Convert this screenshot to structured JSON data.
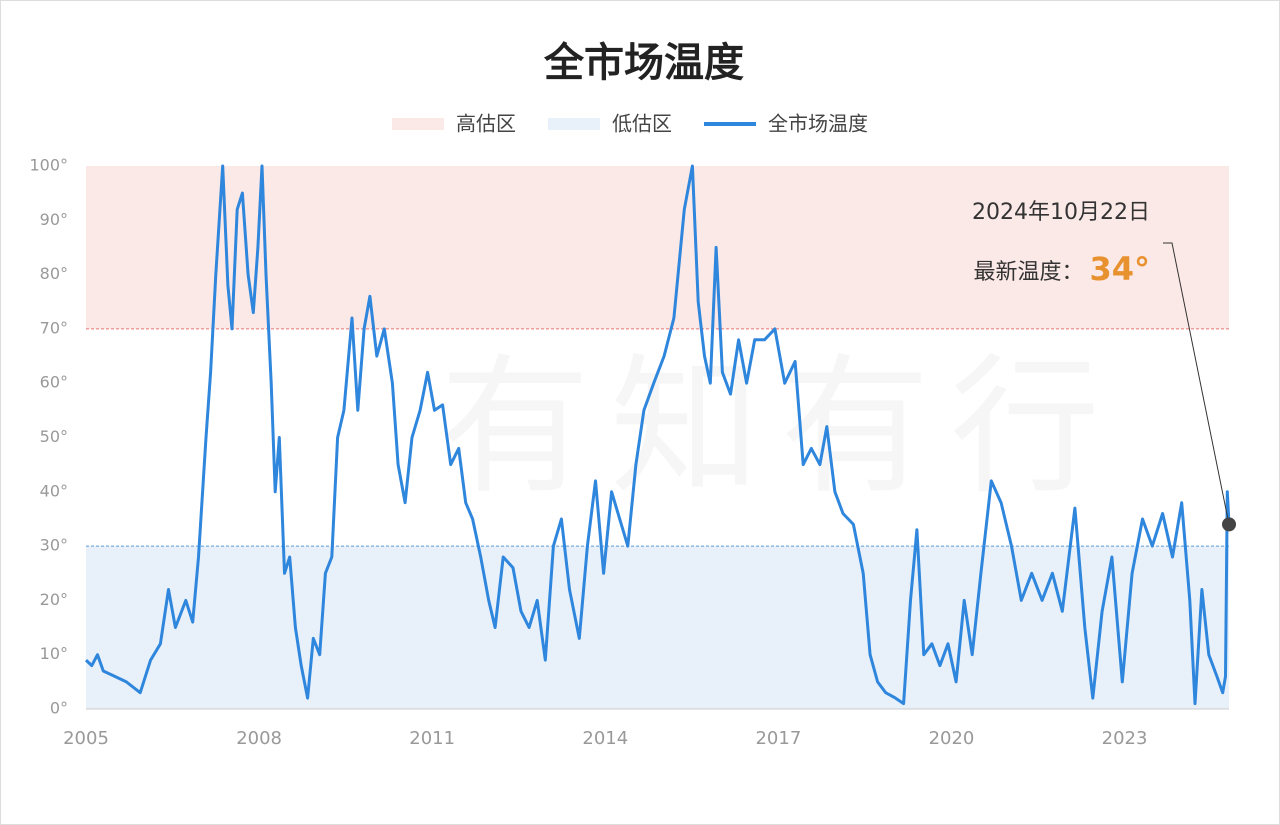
{
  "chart_data": {
    "type": "line",
    "title": "全市场温度",
    "watermark": "有知有行",
    "zones": [
      {
        "name": "高估区",
        "range": [
          70,
          100
        ],
        "color": "#fbe9e7",
        "line_color": "#e57373"
      },
      {
        "name": "低估区",
        "range": [
          0,
          30
        ],
        "color": "#e8f0fa",
        "line_color": "#5b9bd5"
      }
    ],
    "series": [
      {
        "name": "全市场温度",
        "color": "#2f86dd",
        "x": [
          2005.0,
          2005.1,
          2005.2,
          2005.3,
          2005.5,
          2005.7,
          2005.94,
          2006.12,
          2006.29,
          2006.43,
          2006.55,
          2006.73,
          2006.85,
          2006.95,
          2007.08,
          2007.16,
          2007.25,
          2007.37,
          2007.46,
          2007.53,
          2007.62,
          2007.71,
          2007.81,
          2007.9,
          2007.98,
          2008.05,
          2008.12,
          2008.21,
          2008.28,
          2008.35,
          2008.44,
          2008.53,
          2008.63,
          2008.73,
          2008.84,
          2008.94,
          2009.05,
          2009.15,
          2009.26,
          2009.36,
          2009.47,
          2009.61,
          2009.71,
          2009.82,
          2009.92,
          2010.04,
          2010.17,
          2010.31,
          2010.41,
          2010.53,
          2010.65,
          2010.79,
          2010.92,
          2011.04,
          2011.18,
          2011.32,
          2011.46,
          2011.58,
          2011.7,
          2011.84,
          2011.98,
          2012.09,
          2012.23,
          2012.4,
          2012.54,
          2012.68,
          2012.82,
          2012.96,
          2013.1,
          2013.24,
          2013.38,
          2013.55,
          2013.69,
          2013.83,
          2013.97,
          2014.11,
          2014.25,
          2014.39,
          2014.53,
          2014.67,
          2014.84,
          2015.02,
          2015.19,
          2015.37,
          2015.51,
          2015.61,
          2015.72,
          2015.82,
          2015.92,
          2016.03,
          2016.17,
          2016.31,
          2016.45,
          2016.59,
          2016.76,
          2016.94,
          2017.11,
          2017.29,
          2017.43,
          2017.57,
          2017.72,
          2017.84,
          2017.98,
          2018.12,
          2018.3,
          2018.47,
          2018.59,
          2018.72,
          2018.86,
          2019.03,
          2019.17,
          2019.29,
          2019.4,
          2019.52,
          2019.66,
          2019.8,
          2019.94,
          2020.08,
          2020.22,
          2020.36,
          2020.51,
          2020.69,
          2020.86,
          2021.04,
          2021.21,
          2021.39,
          2021.57,
          2021.75,
          2021.92,
          2022.14,
          2022.31,
          2022.45,
          2022.61,
          2022.78,
          2022.96,
          2023.13,
          2023.31,
          2023.48,
          2023.66,
          2023.83,
          2023.99,
          2024.13,
          2024.22,
          2024.34,
          2024.46,
          2024.6,
          2024.7,
          2024.75,
          2024.78,
          2024.81
        ],
        "values": [
          9,
          8,
          10,
          7,
          6,
          5,
          3,
          9,
          12,
          22,
          15,
          20,
          16,
          28,
          50,
          62,
          80,
          100,
          78,
          70,
          92,
          95,
          80,
          73,
          85,
          100,
          80,
          60,
          40,
          50,
          25,
          28,
          15,
          8,
          2,
          13,
          10,
          25,
          28,
          50,
          55,
          72,
          55,
          70,
          76,
          65,
          70,
          60,
          45,
          38,
          50,
          55,
          62,
          55,
          56,
          45,
          48,
          38,
          35,
          28,
          20,
          15,
          28,
          26,
          18,
          15,
          20,
          9,
          30,
          35,
          22,
          13,
          30,
          42,
          25,
          40,
          35,
          30,
          45,
          55,
          60,
          65,
          72,
          92,
          100,
          75,
          65,
          60,
          85,
          62,
          58,
          68,
          60,
          68,
          68,
          70,
          60,
          64,
          45,
          48,
          45,
          52,
          40,
          36,
          34,
          25,
          10,
          5,
          3,
          2,
          1,
          20,
          33,
          10,
          12,
          8,
          12,
          5,
          20,
          10,
          25,
          42,
          38,
          30,
          20,
          25,
          20,
          25,
          18,
          37,
          15,
          2,
          18,
          28,
          5,
          25,
          35,
          30,
          36,
          28,
          38,
          20,
          1,
          22,
          10,
          6,
          3,
          6,
          40,
          34
        ]
      }
    ],
    "annotation": {
      "date": "2024年10月22日",
      "label": "最新温度：",
      "value": 34,
      "value_label": "34°"
    },
    "xlim": [
      2005,
      2024.81
    ],
    "xticks": [
      2005,
      2008,
      2011,
      2014,
      2017,
      2020,
      2023
    ],
    "ylim": [
      0,
      100
    ],
    "yticks": [
      {
        "value": 0,
        "label": "0°"
      },
      {
        "value": 10,
        "label": "10°"
      },
      {
        "value": 20,
        "label": "20°"
      },
      {
        "value": 30,
        "label": "30°"
      },
      {
        "value": 40,
        "label": "40°"
      },
      {
        "value": 50,
        "label": "50°"
      },
      {
        "value": 60,
        "label": "60°"
      },
      {
        "value": 70,
        "label": "70°"
      },
      {
        "value": 80,
        "label": "80°"
      },
      {
        "value": 90,
        "label": "90°"
      },
      {
        "value": 100,
        "label": "100°"
      }
    ]
  }
}
